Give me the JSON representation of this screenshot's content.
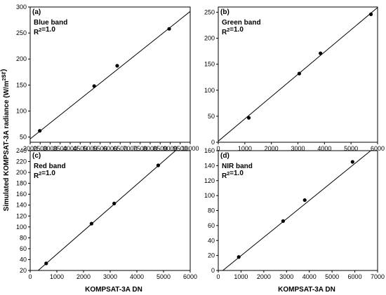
{
  "figure": {
    "y_axis_title": "Simulated KOMPSAT-3A radiance (W/m²sr)",
    "x_axis_title": "KOMPSAT-3A DN"
  },
  "chart_data": [
    {
      "type": "scatter",
      "panel_label": "(a)",
      "band_label": "Blue band",
      "r2_label": "R²=1.0",
      "xlim": [
        2000,
        10000
      ],
      "ylim": [
        40,
        300
      ],
      "xticks": [
        2000,
        2500,
        3000,
        3500,
        4000,
        4500,
        5000,
        5500,
        6000,
        6500,
        7000,
        7500,
        8000,
        8500,
        9000,
        9500,
        10000
      ],
      "yticks": [
        50,
        100,
        150,
        200,
        250,
        300
      ],
      "points": [
        [
          2480,
          62
        ],
        [
          5200,
          148
        ],
        [
          6350,
          187
        ],
        [
          8950,
          258
        ]
      ],
      "fit_line": [
        [
          2000,
          46.4
        ],
        [
          10000,
          291.5
        ]
      ],
      "grid": false
    },
    {
      "type": "scatter",
      "panel_label": "(b)",
      "band_label": "Green band",
      "r2_label": "R²=1.0",
      "xlim": [
        0,
        6000
      ],
      "ylim": [
        0,
        260
      ],
      "xticks": [
        0,
        1000,
        2000,
        3000,
        4000,
        5000,
        6000
      ],
      "yticks": [
        0,
        50,
        100,
        150,
        200,
        250
      ],
      "points": [
        [
          1150,
          47
        ],
        [
          3050,
          132
        ],
        [
          3850,
          171
        ],
        [
          5750,
          246
        ]
      ],
      "fit_line": [
        [
          -50,
          0
        ],
        [
          6000,
          259
        ]
      ],
      "grid": false
    },
    {
      "type": "scatter",
      "panel_label": "(c)",
      "band_label": "Red band",
      "r2_label": "R²=1.0",
      "xlim": [
        0,
        6000
      ],
      "ylim": [
        20,
        240
      ],
      "xticks": [
        0,
        1000,
        2000,
        3000,
        4000,
        5000,
        6000
      ],
      "yticks": [
        20,
        40,
        60,
        80,
        100,
        120,
        140,
        160,
        180,
        200,
        220,
        240
      ],
      "points": [
        [
          600,
          33
        ],
        [
          2300,
          106
        ],
        [
          3150,
          143
        ],
        [
          4800,
          213
        ]
      ],
      "fit_line": [
        [
          300,
          20
        ],
        [
          5450,
          240
        ]
      ],
      "grid": false
    },
    {
      "type": "scatter",
      "panel_label": "(d)",
      "band_label": "NIR band",
      "r2_label": "R²=1.0",
      "xlim": [
        0,
        7000
      ],
      "ylim": [
        0,
        160
      ],
      "xticks": [
        0,
        1000,
        2000,
        3000,
        4000,
        5000,
        6000,
        7000
      ],
      "yticks": [
        0,
        20,
        40,
        60,
        80,
        100,
        120,
        140,
        160
      ],
      "points": [
        [
          900,
          18
        ],
        [
          2850,
          66
        ],
        [
          3800,
          94
        ],
        [
          5900,
          145
        ]
      ],
      "fit_line": [
        [
          200,
          0
        ],
        [
          6700,
          160
        ]
      ],
      "grid": false
    }
  ]
}
